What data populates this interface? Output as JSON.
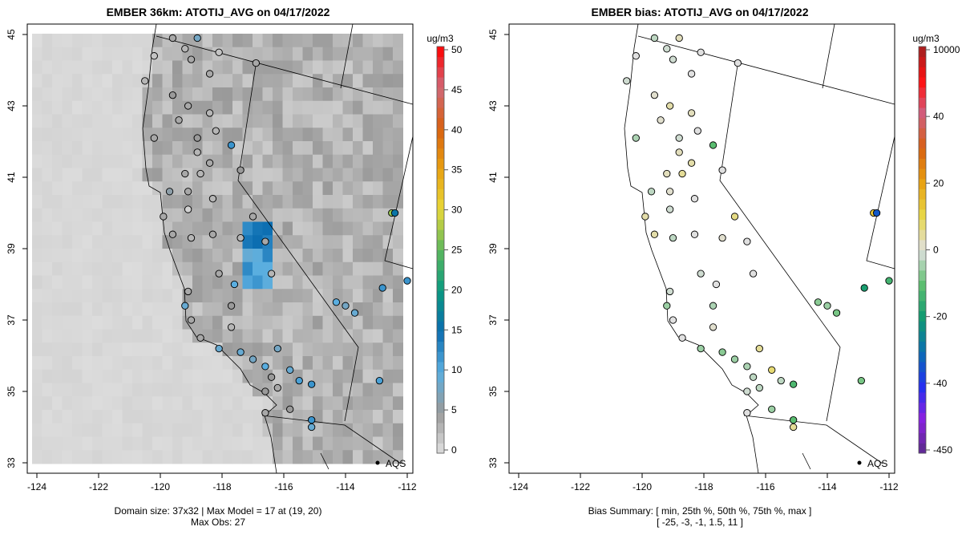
{
  "left": {
    "title": "EMBER 36km: ATOTIJ_AVG on 04/17/2022",
    "units": "ug/m3",
    "colorbar_ticks": [
      "0",
      "5",
      "10",
      "15",
      "20",
      "25",
      "30",
      "35",
      "40",
      "45",
      "50"
    ],
    "footer_line1": "Domain size: 37x32 | Max Model = 17 at (19, 20)",
    "footer_line2": "Max Obs: 27",
    "aqs_label": "AQS"
  },
  "right": {
    "title": "EMBER bias: ATOTIJ_AVG on 04/17/2022",
    "units": "ug/m3",
    "colorbar_ticks": [
      "-450",
      "-40",
      "-20",
      "0",
      "20",
      "40",
      "10000"
    ],
    "footer_line1": "Bias Summary: [ min, 25th %, 50th %, 75th %, max ]",
    "footer_line2": "[ -25,   -3,   -1,   1.5,   11 ]",
    "aqs_label": "AQS"
  },
  "x_ticks": [
    "-124",
    "-122",
    "-120",
    "-118",
    "-116",
    "-114",
    "-112"
  ],
  "y_ticks": [
    "45",
    "43",
    "41",
    "39",
    "37",
    "35",
    "33"
  ],
  "chart_data": {
    "type": "map-scatter",
    "obs_range": [
      0,
      50
    ],
    "bias_range": [
      -450,
      10000
    ],
    "stations_lon_lat_obs_bias": [
      [
        -119.6,
        44.9,
        4,
        -2
      ],
      [
        -118.8,
        44.9,
        8,
        2
      ],
      [
        -119.2,
        44.6,
        3,
        -1
      ],
      [
        -118.1,
        44.5,
        2,
        0
      ],
      [
        -119.0,
        44.3,
        4,
        -1
      ],
      [
        -116.9,
        44.2,
        4,
        0
      ],
      [
        -120.2,
        44.4,
        2,
        0
      ],
      [
        -120.5,
        43.7,
        3,
        -1
      ],
      [
        -118.4,
        43.9,
        4,
        0
      ],
      [
        -119.6,
        43.3,
        5,
        1
      ],
      [
        -119.1,
        43.0,
        4,
        3
      ],
      [
        -118.4,
        42.8,
        3,
        2
      ],
      [
        -119.4,
        42.6,
        4,
        1
      ],
      [
        -118.8,
        42.1,
        5,
        -1
      ],
      [
        -118.2,
        42.3,
        3,
        0
      ],
      [
        -120.2,
        42.1,
        4,
        -3
      ],
      [
        -118.8,
        41.7,
        3,
        2
      ],
      [
        -117.7,
        41.9,
        12,
        -8
      ],
      [
        -118.4,
        41.4,
        4,
        3
      ],
      [
        -117.4,
        41.2,
        5,
        0
      ],
      [
        -119.2,
        41.1,
        4,
        2
      ],
      [
        -118.7,
        41.1,
        3,
        4
      ],
      [
        -119.7,
        40.6,
        6,
        -2
      ],
      [
        -119.1,
        40.6,
        4,
        1
      ],
      [
        -118.3,
        40.4,
        3,
        0
      ],
      [
        -119.1,
        40.1,
        1,
        -1
      ],
      [
        -119.9,
        39.9,
        4,
        3
      ],
      [
        -119.6,
        39.4,
        4,
        3
      ],
      [
        -119.0,
        39.3,
        3,
        -2
      ],
      [
        -118.3,
        39.4,
        4,
        0
      ],
      [
        -117.4,
        39.3,
        3,
        1
      ],
      [
        -116.6,
        39.2,
        4,
        0
      ],
      [
        -117.0,
        39.9,
        4,
        5
      ],
      [
        -116.4,
        38.3,
        3,
        0
      ],
      [
        -118.1,
        38.3,
        4,
        -1
      ],
      [
        -117.6,
        38.0,
        10,
        0
      ],
      [
        -119.1,
        37.8,
        4,
        -1
      ],
      [
        -119.2,
        37.4,
        9,
        -4
      ],
      [
        -117.7,
        37.4,
        5,
        -3
      ],
      [
        -119.0,
        37.0,
        4,
        0
      ],
      [
        -117.7,
        36.8,
        3,
        1
      ],
      [
        -118.7,
        36.5,
        4,
        0
      ],
      [
        -118.1,
        36.2,
        9,
        -4
      ],
      [
        -117.4,
        36.1,
        9,
        -5
      ],
      [
        -117.0,
        35.9,
        8,
        -4
      ],
      [
        -116.6,
        35.7,
        10,
        -3
      ],
      [
        -116.2,
        36.2,
        8,
        4
      ],
      [
        -115.8,
        35.6,
        9,
        6
      ],
      [
        -116.4,
        35.4,
        5,
        -2
      ],
      [
        -115.5,
        35.3,
        11,
        -2
      ],
      [
        -116.6,
        35.0,
        5,
        -1
      ],
      [
        -116.2,
        35.1,
        4,
        -2
      ],
      [
        -115.8,
        34.5,
        5,
        -4
      ],
      [
        -115.1,
        34.2,
        12,
        -8
      ],
      [
        -116.6,
        34.4,
        4,
        0
      ],
      [
        -115.1,
        34.0,
        9,
        4
      ],
      [
        -114.3,
        37.5,
        10,
        -5
      ],
      [
        -114.0,
        37.4,
        8,
        -4
      ],
      [
        -113.7,
        37.2,
        9,
        -6
      ],
      [
        -112.8,
        37.9,
        12,
        -14
      ],
      [
        -112.5,
        40.0,
        27,
        11
      ],
      [
        -112.0,
        38.1,
        12,
        -10
      ],
      [
        -112.9,
        35.3,
        11,
        -6
      ],
      [
        -115.1,
        35.2,
        12,
        -9
      ],
      [
        -112.4,
        40.0,
        16,
        -25
      ]
    ]
  }
}
